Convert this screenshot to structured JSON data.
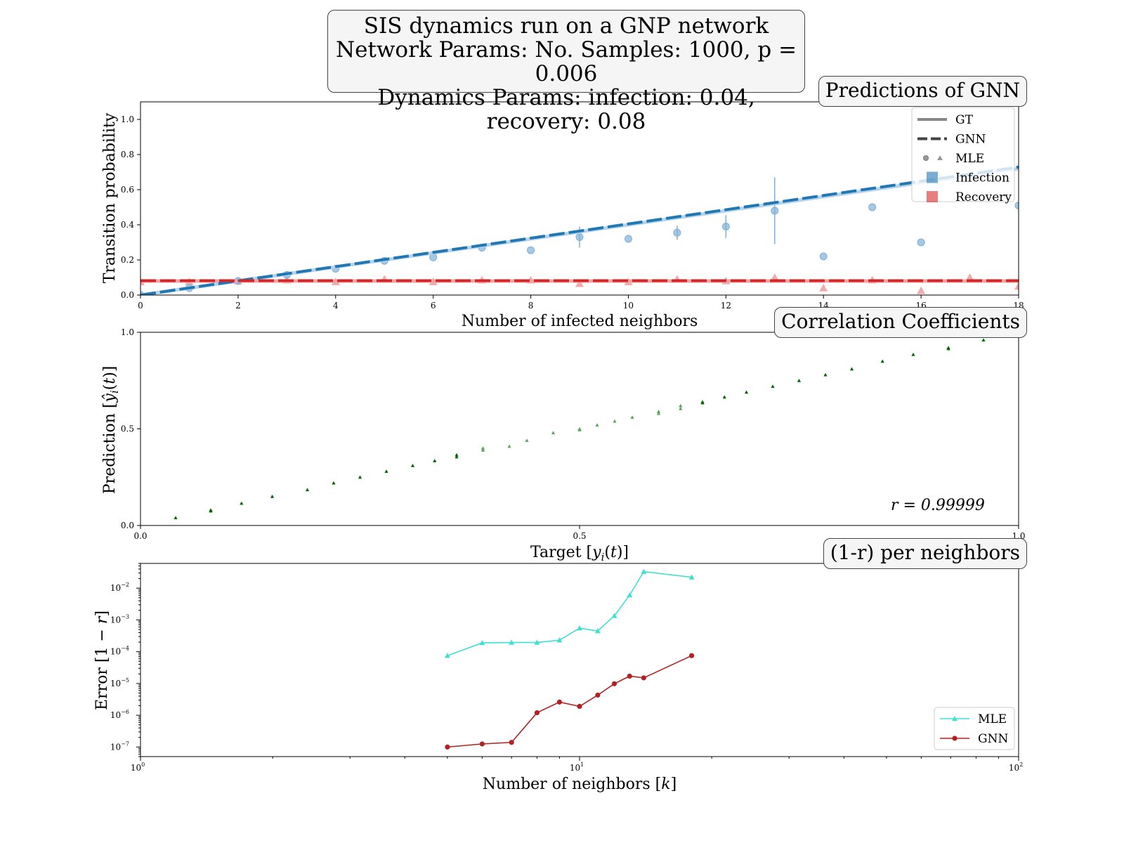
{
  "suptitle": {
    "line1": "SIS dynamics run on a GNP network",
    "line2": "Network Params: No. Samples: 1000, p = 0.006",
    "line3": "Dynamics Params: infection: 0.04, recovery: 0.08"
  },
  "colors": {
    "infection": "#1f77b4",
    "recovery": "#d62728",
    "infection_mle": "#7fb0d8",
    "recovery_mle": "#ec8f90",
    "corr_points": "#006400",
    "err_mle": "#40e0d0",
    "err_gnn": "#b22222"
  },
  "chart_data": [
    {
      "type": "line",
      "title": "Predictions of GNN",
      "xlabel": "Number of infected neighbors",
      "ylabel": "Transition probability",
      "xlim": [
        0,
        18
      ],
      "ylim": [
        0,
        1.1
      ],
      "xticks": [
        "0",
        "2",
        "4",
        "6",
        "8",
        "10",
        "12",
        "14",
        "16",
        "18"
      ],
      "yticks": [
        "0.0",
        "0.2",
        "0.4",
        "0.6",
        "0.8",
        "1.0"
      ],
      "legend": {
        "position": "upper-right",
        "entries": [
          "GT",
          "GNN",
          "MLE",
          "Infection",
          "Recovery"
        ]
      },
      "series": [
        {
          "name": "Infection",
          "gt_rate": 0.04,
          "gnn_rate": 0.0405
        },
        {
          "name": "Recovery",
          "gt_value": 0.08,
          "gnn_value": 0.082
        }
      ],
      "mle_infection": [
        {
          "k": 0,
          "y": 0.0
        },
        {
          "k": 1,
          "y": 0.04
        },
        {
          "k": 2,
          "y": 0.08
        },
        {
          "k": 3,
          "y": 0.115
        },
        {
          "k": 4,
          "y": 0.15
        },
        {
          "k": 5,
          "y": 0.195
        },
        {
          "k": 6,
          "y": 0.215
        },
        {
          "k": 7,
          "y": 0.27
        },
        {
          "k": 8,
          "y": 0.255
        },
        {
          "k": 9,
          "y": 0.33,
          "err": 0.06
        },
        {
          "k": 10,
          "y": 0.32
        },
        {
          "k": 11,
          "y": 0.355,
          "err": 0.04
        },
        {
          "k": 12,
          "y": 0.39,
          "err": 0.065
        },
        {
          "k": 13,
          "y": 0.48,
          "err": 0.19
        },
        {
          "k": 14,
          "y": 0.22
        },
        {
          "k": 15,
          "y": 0.5
        },
        {
          "k": 16,
          "y": 0.3
        },
        {
          "k": 18,
          "y": 0.51
        }
      ],
      "mle_recovery": [
        {
          "k": 0,
          "y": 0.075
        },
        {
          "k": 1,
          "y": 0.075
        },
        {
          "k": 2,
          "y": 0.08
        },
        {
          "k": 3,
          "y": 0.085
        },
        {
          "k": 4,
          "y": 0.075
        },
        {
          "k": 5,
          "y": 0.09
        },
        {
          "k": 6,
          "y": 0.075
        },
        {
          "k": 7,
          "y": 0.085
        },
        {
          "k": 8,
          "y": 0.085
        },
        {
          "k": 9,
          "y": 0.065
        },
        {
          "k": 10,
          "y": 0.075
        },
        {
          "k": 11,
          "y": 0.09
        },
        {
          "k": 12,
          "y": 0.08
        },
        {
          "k": 13,
          "y": 0.1
        },
        {
          "k": 14,
          "y": 0.04
        },
        {
          "k": 15,
          "y": 0.085
        },
        {
          "k": 16,
          "y": 0.025
        },
        {
          "k": 17,
          "y": 0.1
        },
        {
          "k": 18,
          "y": 0.05
        }
      ]
    },
    {
      "type": "scatter",
      "title": "Correlation Coefficients",
      "xlabel": "Target [y_i(t)]",
      "ylabel": "Prediction [ŷ_i(t)]",
      "xlim": [
        0,
        1
      ],
      "ylim": [
        0,
        1
      ],
      "xticks": [
        "0.0",
        "0.5",
        "1.0"
      ],
      "yticks": [
        "0.0",
        "0.5",
        "1.0"
      ],
      "annotation": "r = 0.99999",
      "points": [
        [
          0.04,
          0.04
        ],
        [
          0.08,
          0.08
        ],
        [
          0.08,
          0.075
        ],
        [
          0.115,
          0.115
        ],
        [
          0.15,
          0.15
        ],
        [
          0.19,
          0.185
        ],
        [
          0.22,
          0.22
        ],
        [
          0.25,
          0.25
        ],
        [
          0.28,
          0.28
        ],
        [
          0.31,
          0.31
        ],
        [
          0.335,
          0.335
        ],
        [
          0.36,
          0.365
        ],
        [
          0.36,
          0.355
        ],
        [
          0.39,
          0.39
        ],
        [
          0.39,
          0.4
        ],
        [
          0.42,
          0.41
        ],
        [
          0.44,
          0.44
        ],
        [
          0.47,
          0.48
        ],
        [
          0.5,
          0.5
        ],
        [
          0.5,
          0.495
        ],
        [
          0.52,
          0.52
        ],
        [
          0.54,
          0.54
        ],
        [
          0.56,
          0.56
        ],
        [
          0.59,
          0.59
        ],
        [
          0.59,
          0.58
        ],
        [
          0.615,
          0.62
        ],
        [
          0.615,
          0.605
        ],
        [
          0.64,
          0.64
        ],
        [
          0.64,
          0.635
        ],
        [
          0.665,
          0.665
        ],
        [
          0.69,
          0.69
        ],
        [
          0.72,
          0.72
        ],
        [
          0.75,
          0.75
        ],
        [
          0.78,
          0.78
        ],
        [
          0.81,
          0.81
        ],
        [
          0.845,
          0.85
        ],
        [
          0.88,
          0.885
        ],
        [
          0.92,
          0.92
        ],
        [
          0.92,
          0.915
        ],
        [
          0.96,
          0.96
        ]
      ]
    },
    {
      "type": "line",
      "title": "(1-r) per neighbors",
      "xlabel": "Number of neighbors [k]",
      "ylabel": "Error [1 − r]",
      "xscale": "log",
      "yscale": "log",
      "xlim": [
        1,
        100
      ],
      "ylim": [
        5e-08,
        0.06
      ],
      "xticks": [
        "10^0",
        "10^1",
        "10^2"
      ],
      "yticks": [
        "10^-7",
        "10^-6",
        "10^-5",
        "10^-4",
        "10^-3",
        "10^-2"
      ],
      "legend": {
        "position": "lower-right",
        "entries": [
          "MLE",
          "GNN"
        ]
      },
      "series": [
        {
          "name": "MLE",
          "x": [
            5,
            6,
            7,
            8,
            9,
            10,
            11,
            12,
            13,
            14,
            18
          ],
          "y": [
            7.5e-05,
            0.00019,
            0.000195,
            0.000195,
            0.00023,
            0.00055,
            0.00045,
            0.00135,
            0.006,
            0.033,
            0.022
          ]
        },
        {
          "name": "GNN",
          "x": [
            5,
            6,
            7,
            8,
            9,
            10,
            11,
            12,
            13,
            14,
            18
          ],
          "y": [
            1e-07,
            1.25e-07,
            1.4e-07,
            1.2e-06,
            2.6e-06,
            1.9e-06,
            4.3e-06,
            9.8e-06,
            1.7e-05,
            1.5e-05,
            7.5e-05
          ]
        }
      ]
    }
  ]
}
